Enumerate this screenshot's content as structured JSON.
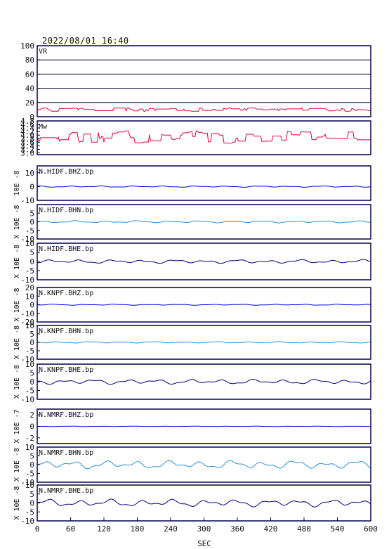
{
  "header": {
    "datetime": "2022/08/01  16:40"
  },
  "colors": {
    "frame": "#00004a",
    "vr_mw_line": "#e0003c",
    "dark_blue": "#000080",
    "medium_blue": "#0000e0",
    "light_blue": "#2c8fd8",
    "grid": "#00004a"
  },
  "chart_data": [
    {
      "type": "line",
      "label": "VR",
      "ylim": [
        0,
        100
      ],
      "ytick_labels": [
        "100",
        "80",
        "60",
        "40",
        "20",
        "0"
      ],
      "grid": true,
      "baseline": 10,
      "amplitude": 2.5,
      "seed": 1,
      "style": "step"
    },
    {
      "type": "line",
      "label": "Mw",
      "ylim": [
        2.9,
        4.8
      ],
      "ytick_labels": [
        "4.8",
        "4.6",
        "4.4",
        "4.2",
        "4.0",
        "3.8",
        "3.6",
        "3.4",
        "3.2",
        "3.0"
      ],
      "grid": false,
      "baseline": 3.9,
      "amplitude": 0.35,
      "seed": 2,
      "style": "step"
    },
    {
      "type": "line",
      "label": "N.HIDF.BHZ.bp",
      "ylabel": "10E -8",
      "ylim": [
        -10,
        15
      ],
      "ytick_labels": [
        "10",
        "0",
        "-10"
      ],
      "amplitude": 0.5,
      "seed": 3,
      "style": "smooth"
    },
    {
      "type": "line",
      "label": "N.HIDF.BHN.bp",
      "ylabel": "X 10E -8",
      "ylim": [
        -10,
        10
      ],
      "ytick_labels": [
        "5",
        "0",
        "-5",
        "-10"
      ],
      "amplitude": 0.6,
      "seed": 4,
      "style": "smooth"
    },
    {
      "type": "line",
      "label": "N.HIDF.BHE.bp",
      "ylabel": "X 10E -8",
      "ylim": [
        -10,
        10
      ],
      "ytick_labels": [
        "10",
        "5",
        "0",
        "-5",
        "-10"
      ],
      "amplitude": 1.0,
      "seed": 5,
      "style": "smooth"
    },
    {
      "type": "line",
      "label": "N.KNPF.BHZ.bp",
      "ylabel": "X 10E -8",
      "ylim": [
        -20,
        20
      ],
      "ytick_labels": [
        "20",
        "10",
        "0",
        "-10",
        "-20"
      ],
      "amplitude": 0.6,
      "seed": 6,
      "style": "smooth"
    },
    {
      "type": "line",
      "label": "N.KNPF.BHN.bp",
      "ylabel": "X 10E -8",
      "ylim": [
        -10,
        10
      ],
      "ytick_labels": [
        "10",
        "5",
        "0",
        "-5",
        "-10"
      ],
      "amplitude": 0.4,
      "seed": 7,
      "style": "smooth"
    },
    {
      "type": "line",
      "label": "N.KNPF.BHE.bp",
      "ylabel": "X 10E -8",
      "ylim": [
        -10,
        10
      ],
      "ytick_labels": [
        "10",
        "5",
        "0",
        "-5",
        "-10"
      ],
      "amplitude": 1.4,
      "seed": 8,
      "style": "smooth"
    },
    {
      "type": "line",
      "label": "N.NMRF.BHZ.bp",
      "ylabel": "X 10E -7",
      "ylim": [
        -3,
        3
      ],
      "ytick_labels": [
        "2",
        "0",
        "-2"
      ],
      "amplitude": 0.03,
      "seed": 9,
      "style": "smooth"
    },
    {
      "type": "line",
      "label": "N.NMRF.BHN.bp",
      "ylabel": "X 10E -8",
      "ylim": [
        -10,
        10
      ],
      "ytick_labels": [
        "10",
        "5",
        "0",
        "-5",
        "-10"
      ],
      "amplitude": 2.3,
      "seed": 10,
      "style": "smooth"
    },
    {
      "type": "line",
      "label": "N.NMRF.BHE.bp",
      "ylabel": "X 10E -8",
      "ylim": [
        -10,
        10
      ],
      "ytick_labels": [
        "10",
        "5",
        "0",
        "-5",
        "-10"
      ],
      "amplitude": 2.0,
      "seed": 11,
      "style": "smooth"
    }
  ],
  "x_axis": {
    "label": "SEC",
    "xlim": [
      0,
      600
    ],
    "ticks": [
      "0",
      "60",
      "120",
      "180",
      "240",
      "300",
      "360",
      "420",
      "480",
      "540",
      "600"
    ]
  }
}
